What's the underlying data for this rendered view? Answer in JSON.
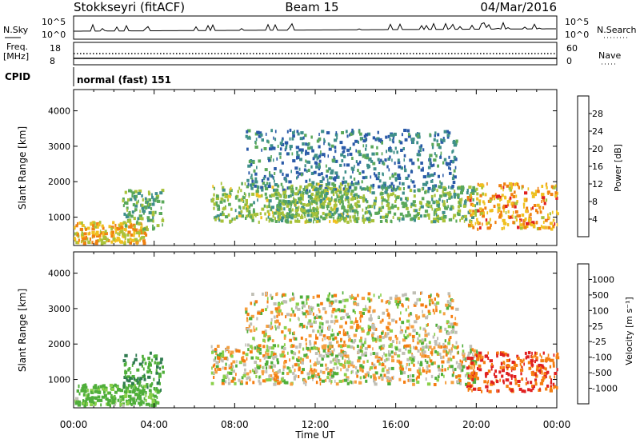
{
  "header": {
    "station": "Stokkseyri (fitACF)",
    "beam": "Beam 15",
    "date": "04/Mar/2016"
  },
  "status_panels": {
    "noise": {
      "left_label": "N.Sky",
      "right_label": "N.Search",
      "left_ticks": [
        "10^5",
        "10^0"
      ],
      "right_ticks": [
        "10^5",
        "10^0"
      ]
    },
    "freq": {
      "left_label_1": "Freq.",
      "left_label_2": "[MHz]",
      "right_label": "Nave",
      "left_ticks": [
        "18",
        "8"
      ],
      "right_ticks": [
        "60",
        "0"
      ]
    },
    "cpid": {
      "label": "CPID",
      "text": "normal (fast) 151"
    }
  },
  "chart_data": [
    {
      "type": "heatmap",
      "name": "power",
      "ylabel": "Slant Range [km]",
      "ylim": [
        200,
        4600
      ],
      "yticks": [
        "1000",
        "2000",
        "3000",
        "4000"
      ],
      "xlim": [
        0,
        24
      ],
      "colorbar": {
        "label": "Power [dB]",
        "ticks": [
          "4",
          "8",
          "12",
          "16",
          "20",
          "24",
          "28"
        ],
        "range": [
          0,
          32
        ],
        "colors": [
          "#1a1aff",
          "#2a5aa8",
          "#3f8f8a",
          "#5aa85a",
          "#a8c23a",
          "#f0c020",
          "#f08010",
          "#e02020"
        ]
      },
      "regions": [
        {
          "t0": 0.0,
          "t1": 3.6,
          "r0": 300,
          "r1": 900,
          "power": 22
        },
        {
          "t0": 2.4,
          "t1": 4.4,
          "r0": 700,
          "r1": 1800,
          "power": 14
        },
        {
          "t0": 6.8,
          "t1": 14.0,
          "r0": 900,
          "r1": 2000,
          "power": 16
        },
        {
          "t0": 8.5,
          "t1": 19.0,
          "r0": 1800,
          "r1": 3500,
          "power": 9
        },
        {
          "t0": 10.0,
          "t1": 20.0,
          "r0": 900,
          "r1": 1900,
          "power": 15
        },
        {
          "t0": 19.5,
          "t1": 24.0,
          "r0": 700,
          "r1": 2000,
          "power": 24
        }
      ]
    },
    {
      "type": "heatmap",
      "name": "velocity",
      "ylabel": "Slant Range [km]",
      "ylim": [
        200,
        4600
      ],
      "yticks": [
        "1000",
        "2000",
        "3000",
        "4000"
      ],
      "xlim": [
        0,
        24
      ],
      "xlabel": "Time UT",
      "xticks": [
        "00:00",
        "04:00",
        "08:00",
        "12:00",
        "16:00",
        "20:00",
        "00:00"
      ],
      "colorbar": {
        "label": "Velocity [m s⁻¹]",
        "ticks": [
          "1000",
          "500",
          "100",
          "25",
          "-25",
          "-100",
          "-500",
          "-1000"
        ],
        "colors": [
          "#1e3ea0",
          "#2e7a4e",
          "#4fae3a",
          "#8ad04a",
          "#c0bfb5",
          "#f5a040",
          "#f57d10",
          "#e02020"
        ]
      },
      "regions": [
        {
          "t0": 0.0,
          "t1": 4.2,
          "r0": 300,
          "r1": 900,
          "velocity": 120
        },
        {
          "t0": 2.4,
          "t1": 4.4,
          "r0": 700,
          "r1": 1800,
          "velocity": 300
        },
        {
          "t0": 6.8,
          "t1": 20.0,
          "r0": 900,
          "r1": 2000,
          "velocity": 0
        },
        {
          "t0": 8.5,
          "t1": 19.0,
          "r0": 1900,
          "r1": 3500,
          "velocity": 0
        },
        {
          "t0": 19.5,
          "t1": 24.0,
          "r0": 700,
          "r1": 1800,
          "velocity": -300
        }
      ]
    }
  ]
}
